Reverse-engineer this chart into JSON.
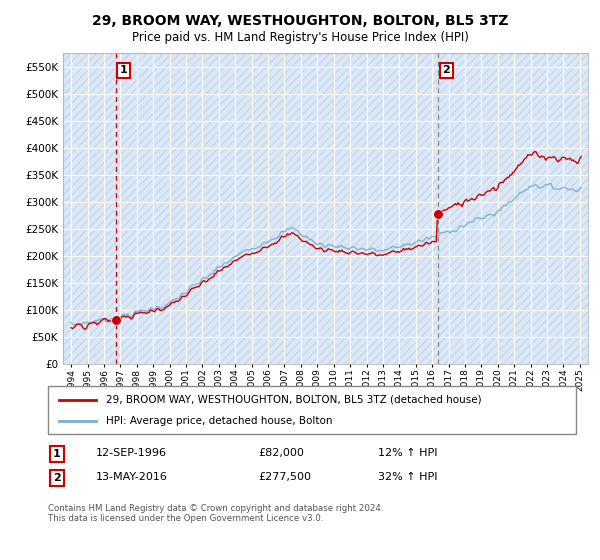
{
  "title": "29, BROOM WAY, WESTHOUGHTON, BOLTON, BL5 3TZ",
  "subtitle": "Price paid vs. HM Land Registry's House Price Index (HPI)",
  "legend_line1": "29, BROOM WAY, WESTHOUGHTON, BOLTON, BL5 3TZ (detached house)",
  "legend_line2": "HPI: Average price, detached house, Bolton",
  "annotation1_label": "1",
  "annotation1_date": "12-SEP-1996",
  "annotation1_price": "£82,000",
  "annotation1_hpi": "12% ↑ HPI",
  "annotation2_label": "2",
  "annotation2_date": "13-MAY-2016",
  "annotation2_price": "£277,500",
  "annotation2_hpi": "32% ↑ HPI",
  "footer": "Contains HM Land Registry data © Crown copyright and database right 2024.\nThis data is licensed under the Open Government Licence v3.0.",
  "sale1_year": 1996.7,
  "sale1_value": 82000,
  "sale2_year": 2016.37,
  "sale2_value": 277500,
  "line_color_red": "#cc0000",
  "line_color_blue": "#7aadd4",
  "dot_color": "#cc0000",
  "dashed1_color": "#cc0000",
  "dashed2_color": "#888888",
  "background_color": "#dce8f5",
  "hatch_color": "#c8d8ec",
  "ylim": [
    0,
    575000
  ],
  "xlim_start": 1993.5,
  "xlim_end": 2025.5
}
